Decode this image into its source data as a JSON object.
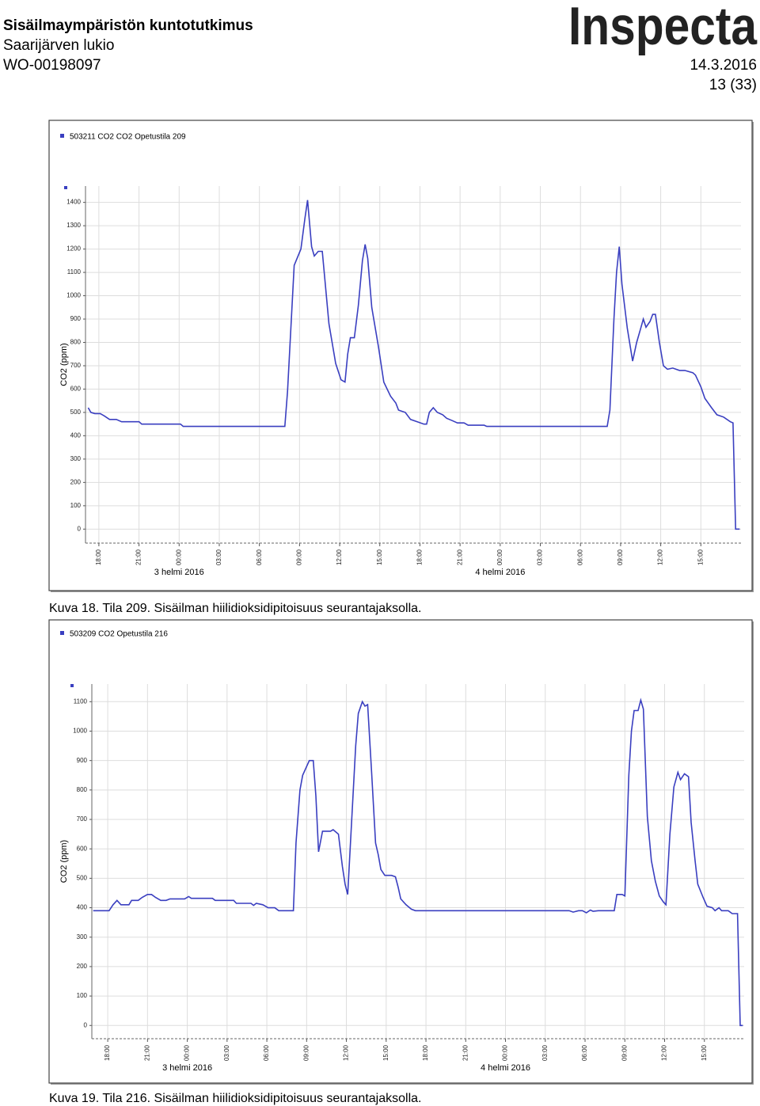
{
  "header": {
    "title": "Sisäilmaympäristön kuntotutkimus",
    "site": "Saarijärven lukio",
    "order": "WO-00198097",
    "logo": "Inspecta",
    "date": "14.3.2016",
    "page": "13 (33)"
  },
  "chart_data": [
    {
      "type": "line",
      "caption": "Kuva 18. Tila 209. Sisäilman hiilidioksidipitoisuus seurantajaksolla.",
      "y_label": "CO2 (ppm)",
      "x": [
        17.2,
        17.4,
        17.7,
        18.1,
        18.4,
        18.8,
        19.3,
        19.7,
        21.0,
        21.2,
        24.1,
        24.3,
        31.9,
        32.1,
        32.6,
        33.1,
        33.4,
        33.6,
        33.9,
        34.1,
        34.4,
        34.7,
        35.2,
        35.7,
        36.1,
        36.4,
        36.6,
        36.8,
        37.1,
        37.4,
        37.7,
        37.9,
        38.1,
        38.4,
        38.9,
        39.3,
        39.8,
        40.2,
        40.4,
        40.9,
        41.3,
        41.8,
        42.3,
        42.5,
        42.7,
        43.0,
        43.3,
        43.7,
        44.0,
        44.4,
        44.8,
        45.3,
        45.6,
        46.8,
        47.0,
        56.0,
        56.2,
        56.5,
        56.7,
        56.9,
        57.1,
        57.5,
        57.9,
        58.2,
        58.5,
        58.7,
        58.9,
        59.2,
        59.4,
        59.6,
        59.9,
        60.2,
        60.5,
        60.9,
        61.4,
        61.8,
        62.4,
        62.6,
        63.0,
        63.3,
        63.8,
        64.2,
        64.7,
        65.2,
        65.4,
        65.6,
        65.9
      ],
      "series": [
        {
          "name": "503211 CO2 CO2 Opetustila 209",
          "color": "#3a3fc0",
          "values": [
            520,
            500,
            495,
            495,
            485,
            470,
            470,
            460,
            460,
            450,
            450,
            440,
            440,
            590,
            1130,
            1200,
            1330,
            1410,
            1210,
            1170,
            1190,
            1190,
            880,
            710,
            640,
            630,
            750,
            820,
            820,
            960,
            1150,
            1220,
            1160,
            950,
            780,
            630,
            570,
            540,
            510,
            500,
            470,
            460,
            450,
            450,
            500,
            520,
            500,
            490,
            475,
            465,
            455,
            455,
            445,
            445,
            440,
            440,
            510,
            900,
            1100,
            1210,
            1050,
            860,
            720,
            800,
            860,
            900,
            865,
            890,
            920,
            920,
            800,
            700,
            685,
            690,
            680,
            680,
            670,
            660,
            610,
            560,
            520,
            490,
            480,
            460,
            455,
            0,
            0
          ]
        }
      ],
      "xlim": [
        17,
        66
      ],
      "ylim": [
        -60,
        1470
      ],
      "yticks": [
        0,
        100,
        200,
        300,
        400,
        500,
        600,
        700,
        800,
        900,
        1000,
        1100,
        1200,
        1300,
        1400
      ],
      "xticks": [
        {
          "value": 18,
          "label": "18:00"
        },
        {
          "value": 21,
          "label": "21:00"
        },
        {
          "value": 24,
          "label": "00:00"
        },
        {
          "value": 27,
          "label": "03:00"
        },
        {
          "value": 30,
          "label": "06:00"
        },
        {
          "value": 33,
          "label": "09:00"
        },
        {
          "value": 36,
          "label": "12:00"
        },
        {
          "value": 39,
          "label": "15:00"
        },
        {
          "value": 42,
          "label": "18:00"
        },
        {
          "value": 45,
          "label": "21:00"
        },
        {
          "value": 48,
          "label": "00:00"
        },
        {
          "value": 51,
          "label": "03:00"
        },
        {
          "value": 54,
          "label": "06:00"
        },
        {
          "value": 57,
          "label": "09:00"
        },
        {
          "value": 60,
          "label": "12:00"
        },
        {
          "value": 63,
          "label": "15:00"
        }
      ],
      "date_labels": [
        {
          "value": 24,
          "label": "3 helmi 2016"
        },
        {
          "value": 48,
          "label": "4 helmi 2016"
        }
      ],
      "grid": true
    },
    {
      "type": "line",
      "caption": "Kuva 19. Tila 216. Sisäilman hiilidioksidipitoisuus seurantajaksolla.",
      "y_label": "CO2 (ppm)",
      "x": [
        16.9,
        18.1,
        18.4,
        18.7,
        19.0,
        19.6,
        19.8,
        20.3,
        20.6,
        21.0,
        21.3,
        21.6,
        22.0,
        22.4,
        22.7,
        23.8,
        24.1,
        24.3,
        25.9,
        26.1,
        27.5,
        27.7,
        28.8,
        29.0,
        29.2,
        29.7,
        30.1,
        30.6,
        30.9,
        32.0,
        32.2,
        32.5,
        32.7,
        33.2,
        33.5,
        33.7,
        33.9,
        34.2,
        34.8,
        35.0,
        35.4,
        35.7,
        35.9,
        36.1,
        36.4,
        36.7,
        36.9,
        37.2,
        37.4,
        37.6,
        37.9,
        38.2,
        38.4,
        38.6,
        38.9,
        39.4,
        39.7,
        39.9,
        40.1,
        40.5,
        40.9,
        41.2,
        52.8,
        53.1,
        53.5,
        53.8,
        54.1,
        54.4,
        54.6,
        55.0,
        56.2,
        56.4,
        56.8,
        57.0,
        57.3,
        57.5,
        57.7,
        58.0,
        58.2,
        58.4,
        58.7,
        59.0,
        59.3,
        59.6,
        59.9,
        60.1,
        60.4,
        60.7,
        61.0,
        61.2,
        61.5,
        61.8,
        62.0,
        62.3,
        62.5,
        62.9,
        63.2,
        63.6,
        63.8,
        64.1,
        64.3,
        64.8,
        65.1,
        65.5,
        65.7,
        65.9
      ],
      "series": [
        {
          "name": "503209 CO2 Opetustila 216",
          "color": "#3a3fc0",
          "values": [
            390,
            390,
            410,
            425,
            410,
            410,
            425,
            425,
            435,
            445,
            445,
            435,
            425,
            425,
            430,
            430,
            438,
            432,
            432,
            425,
            425,
            415,
            415,
            408,
            415,
            410,
            400,
            400,
            390,
            390,
            620,
            800,
            850,
            900,
            900,
            780,
            590,
            660,
            660,
            665,
            650,
            540,
            480,
            445,
            700,
            950,
            1060,
            1100,
            1085,
            1090,
            860,
            620,
            580,
            530,
            510,
            510,
            505,
            470,
            430,
            410,
            395,
            390,
            390,
            385,
            390,
            390,
            383,
            392,
            388,
            390,
            390,
            445,
            445,
            440,
            850,
            1000,
            1070,
            1070,
            1105,
            1075,
            710,
            560,
            490,
            440,
            420,
            410,
            650,
            810,
            860,
            835,
            855,
            845,
            690,
            560,
            480,
            435,
            405,
            400,
            390,
            400,
            390,
            390,
            380,
            380,
            0,
            0
          ]
        }
      ],
      "xlim": [
        16.8,
        66
      ],
      "ylim": [
        -45,
        1160
      ],
      "yticks": [
        0,
        100,
        200,
        300,
        400,
        500,
        600,
        700,
        800,
        900,
        1000,
        1100
      ],
      "xticks": [
        {
          "value": 18,
          "label": "18:00"
        },
        {
          "value": 21,
          "label": "21:00"
        },
        {
          "value": 24,
          "label": "00:00"
        },
        {
          "value": 27,
          "label": "03:00"
        },
        {
          "value": 30,
          "label": "06:00"
        },
        {
          "value": 33,
          "label": "09:00"
        },
        {
          "value": 36,
          "label": "12:00"
        },
        {
          "value": 39,
          "label": "15:00"
        },
        {
          "value": 42,
          "label": "18:00"
        },
        {
          "value": 45,
          "label": "21:00"
        },
        {
          "value": 48,
          "label": "00:00"
        },
        {
          "value": 51,
          "label": "03:00"
        },
        {
          "value": 54,
          "label": "06:00"
        },
        {
          "value": 57,
          "label": "09:00"
        },
        {
          "value": 60,
          "label": "12:00"
        },
        {
          "value": 63,
          "label": "15:00"
        }
      ],
      "date_labels": [
        {
          "value": 24,
          "label": "3 helmi 2016"
        },
        {
          "value": 48,
          "label": "4 helmi 2016"
        }
      ],
      "grid": true
    }
  ]
}
